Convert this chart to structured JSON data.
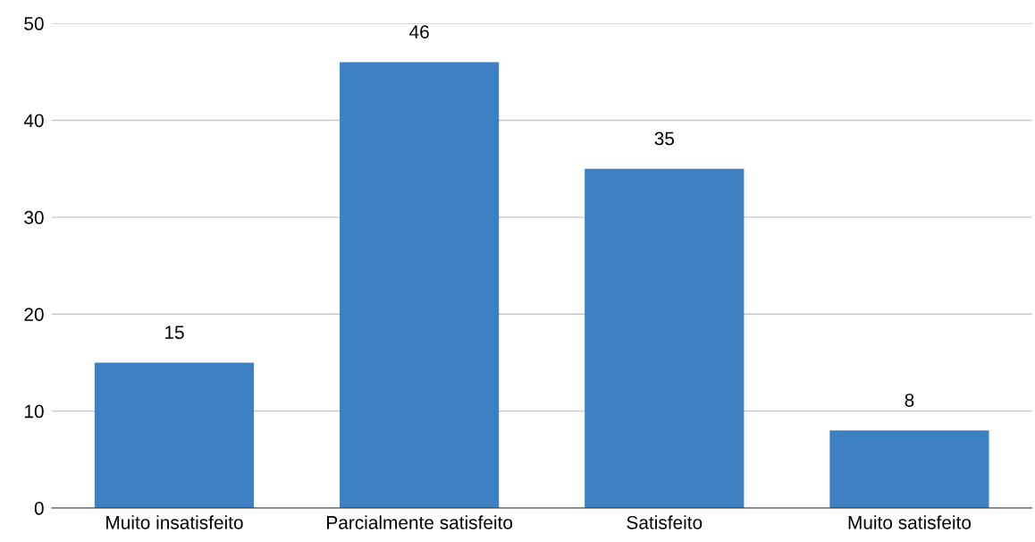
{
  "chart_data": {
    "type": "bar",
    "categories": [
      "Muito insatisfeito",
      "Parcialmente satisfeito",
      "Satisfeito",
      "Muito satisfeito"
    ],
    "values": [
      15,
      46,
      35,
      8
    ],
    "color": "#3d81c2",
    "ylim": [
      0,
      50
    ],
    "yticks": [
      0,
      10,
      20,
      30,
      40,
      50
    ],
    "grid": "y",
    "data_labels": true
  }
}
